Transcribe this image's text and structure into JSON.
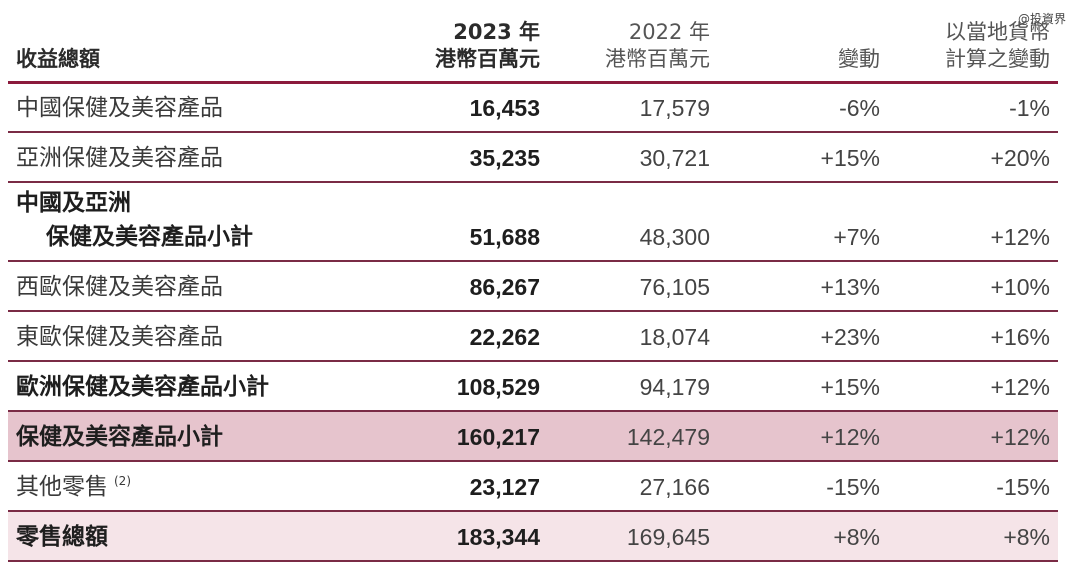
{
  "watermark": "@投資界",
  "header": {
    "label": "收益總額",
    "col2023_line1": "2023 年",
    "col2023_line2": "港幣百萬元",
    "col2022_line1": "2022 年",
    "col2022_line2": "港幣百萬元",
    "change": "變動",
    "local_line1": "以當地貨幣",
    "local_line2": "計算之變動"
  },
  "rows": [
    {
      "label": "中國保健及美容產品",
      "v2023": "16,453",
      "v2022": "17,579",
      "change": "-6%",
      "local": "-1%"
    },
    {
      "label": "亞洲保健及美容產品",
      "v2023": "35,235",
      "v2022": "30,721",
      "change": "+15%",
      "local": "+20%"
    },
    {
      "label_line1": "中國及亞洲",
      "label_line2": "保健及美容產品小計",
      "v2023": "51,688",
      "v2022": "48,300",
      "change": "+7%",
      "local": "+12%"
    },
    {
      "label": "西歐保健及美容產品",
      "v2023": "86,267",
      "v2022": "76,105",
      "change": "+13%",
      "local": "+10%"
    },
    {
      "label": "東歐保健及美容產品",
      "v2023": "22,262",
      "v2022": "18,074",
      "change": "+23%",
      "local": "+16%"
    },
    {
      "label": "歐洲保健及美容產品小計",
      "v2023": "108,529",
      "v2022": "94,179",
      "change": "+15%",
      "local": "+12%"
    },
    {
      "label": "保健及美容產品小計",
      "v2023": "160,217",
      "v2022": "142,479",
      "change": "+12%",
      "local": "+12%"
    },
    {
      "label": "其他零售",
      "note": "(2)",
      "v2023": "23,127",
      "v2022": "27,166",
      "change": "-15%",
      "local": "-15%"
    },
    {
      "label": "零售總額",
      "v2023": "183,344",
      "v2022": "169,645",
      "change": "+8%",
      "local": "+8%"
    }
  ]
}
